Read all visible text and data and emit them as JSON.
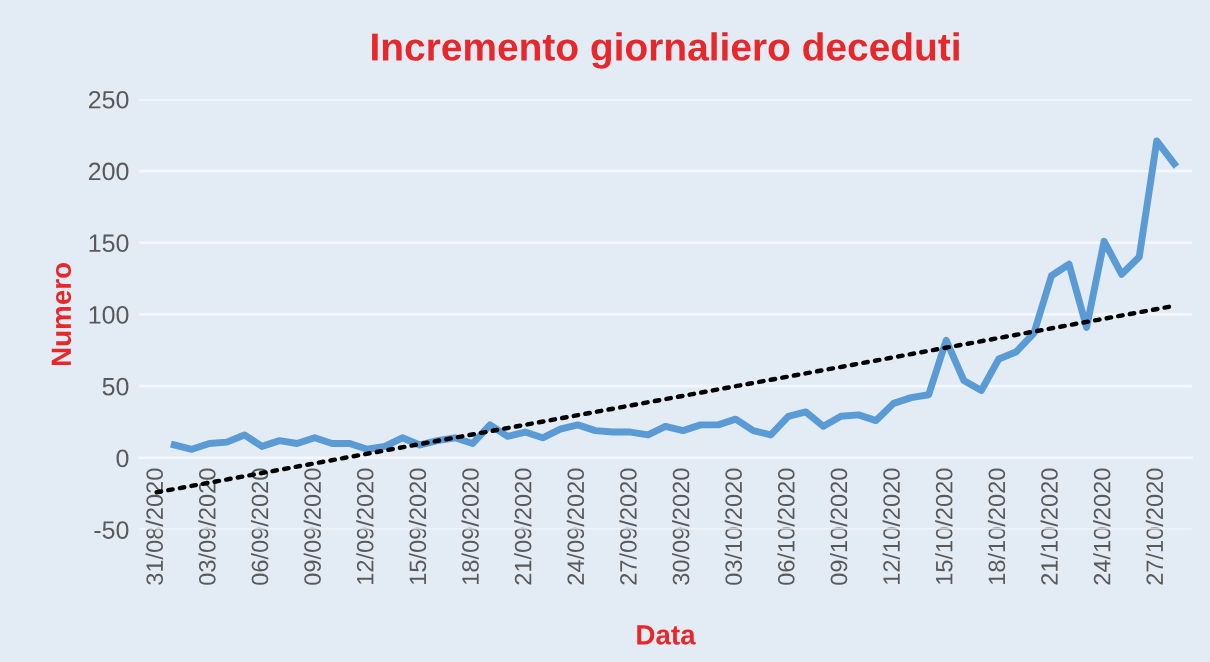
{
  "chart_data": {
    "type": "line",
    "title": "Incremento giornaliero deceduti",
    "xlabel": "Data",
    "ylabel": "Numero",
    "ylim": [
      -50,
      250
    ],
    "yticks": [
      -50,
      0,
      50,
      100,
      150,
      200,
      250
    ],
    "xlim": [
      "2020-08-30",
      "2020-10-29"
    ],
    "xticks": [
      {
        "value": "2020-08-31",
        "label": "31/08/2020"
      },
      {
        "value": "2020-09-03",
        "label": "03/09/2020"
      },
      {
        "value": "2020-09-06",
        "label": "06/09/2020"
      },
      {
        "value": "2020-09-09",
        "label": "09/09/2020"
      },
      {
        "value": "2020-09-12",
        "label": "12/09/2020"
      },
      {
        "value": "2020-09-15",
        "label": "15/09/2020"
      },
      {
        "value": "2020-09-18",
        "label": "18/09/2020"
      },
      {
        "value": "2020-09-21",
        "label": "21/09/2020"
      },
      {
        "value": "2020-09-24",
        "label": "24/09/2020"
      },
      {
        "value": "2020-09-27",
        "label": "27/09/2020"
      },
      {
        "value": "2020-09-30",
        "label": "30/09/2020"
      },
      {
        "value": "2020-10-03",
        "label": "03/10/2020"
      },
      {
        "value": "2020-10-06",
        "label": "06/10/2020"
      },
      {
        "value": "2020-10-09",
        "label": "09/10/2020"
      },
      {
        "value": "2020-10-12",
        "label": "12/10/2020"
      },
      {
        "value": "2020-10-15",
        "label": "15/10/2020"
      },
      {
        "value": "2020-10-18",
        "label": "18/10/2020"
      },
      {
        "value": "2020-10-21",
        "label": "21/10/2020"
      },
      {
        "value": "2020-10-24",
        "label": "24/10/2020"
      },
      {
        "value": "2020-10-27",
        "label": "27/10/2020"
      }
    ],
    "grid": "y",
    "marker": "none",
    "series": [
      {
        "color": "#5b9bd5",
        "line_style": "solid",
        "x": [
          "2020-09-01",
          "2020-09-02",
          "2020-09-03",
          "2020-09-04",
          "2020-09-05",
          "2020-09-06",
          "2020-09-07",
          "2020-09-08",
          "2020-09-09",
          "2020-09-10",
          "2020-09-11",
          "2020-09-12",
          "2020-09-13",
          "2020-09-14",
          "2020-09-15",
          "2020-09-16",
          "2020-09-17",
          "2020-09-18",
          "2020-09-19",
          "2020-09-20",
          "2020-09-21",
          "2020-09-22",
          "2020-09-23",
          "2020-09-24",
          "2020-09-25",
          "2020-09-26",
          "2020-09-27",
          "2020-09-28",
          "2020-09-29",
          "2020-09-30",
          "2020-10-01",
          "2020-10-02",
          "2020-10-03",
          "2020-10-04",
          "2020-10-05",
          "2020-10-06",
          "2020-10-07",
          "2020-10-08",
          "2020-10-09",
          "2020-10-10",
          "2020-10-11",
          "2020-10-12",
          "2020-10-13",
          "2020-10-14",
          "2020-10-15",
          "2020-10-16",
          "2020-10-17",
          "2020-10-18",
          "2020-10-19",
          "2020-10-20",
          "2020-10-21",
          "2020-10-22",
          "2020-10-23",
          "2020-10-24",
          "2020-10-25",
          "2020-10-26",
          "2020-10-27",
          "2020-10-28"
        ],
        "values": [
          9,
          6,
          10,
          11,
          16,
          8,
          12,
          10,
          14,
          10,
          10,
          6,
          8,
          14,
          9,
          12,
          14,
          10,
          23,
          15,
          18,
          14,
          20,
          23,
          19,
          18,
          18,
          16,
          22,
          19,
          23,
          23,
          27,
          19,
          16,
          29,
          32,
          22,
          29,
          30,
          26,
          38,
          42,
          44,
          82,
          54,
          47,
          69,
          74,
          87,
          127,
          135,
          91,
          151,
          128,
          140,
          221,
          205
        ]
      },
      {
        "color": "#000000",
        "line_style": "dotted",
        "x": [
          "2020-08-31",
          "2020-10-28"
        ],
        "values": [
          -24,
          106
        ]
      }
    ]
  }
}
